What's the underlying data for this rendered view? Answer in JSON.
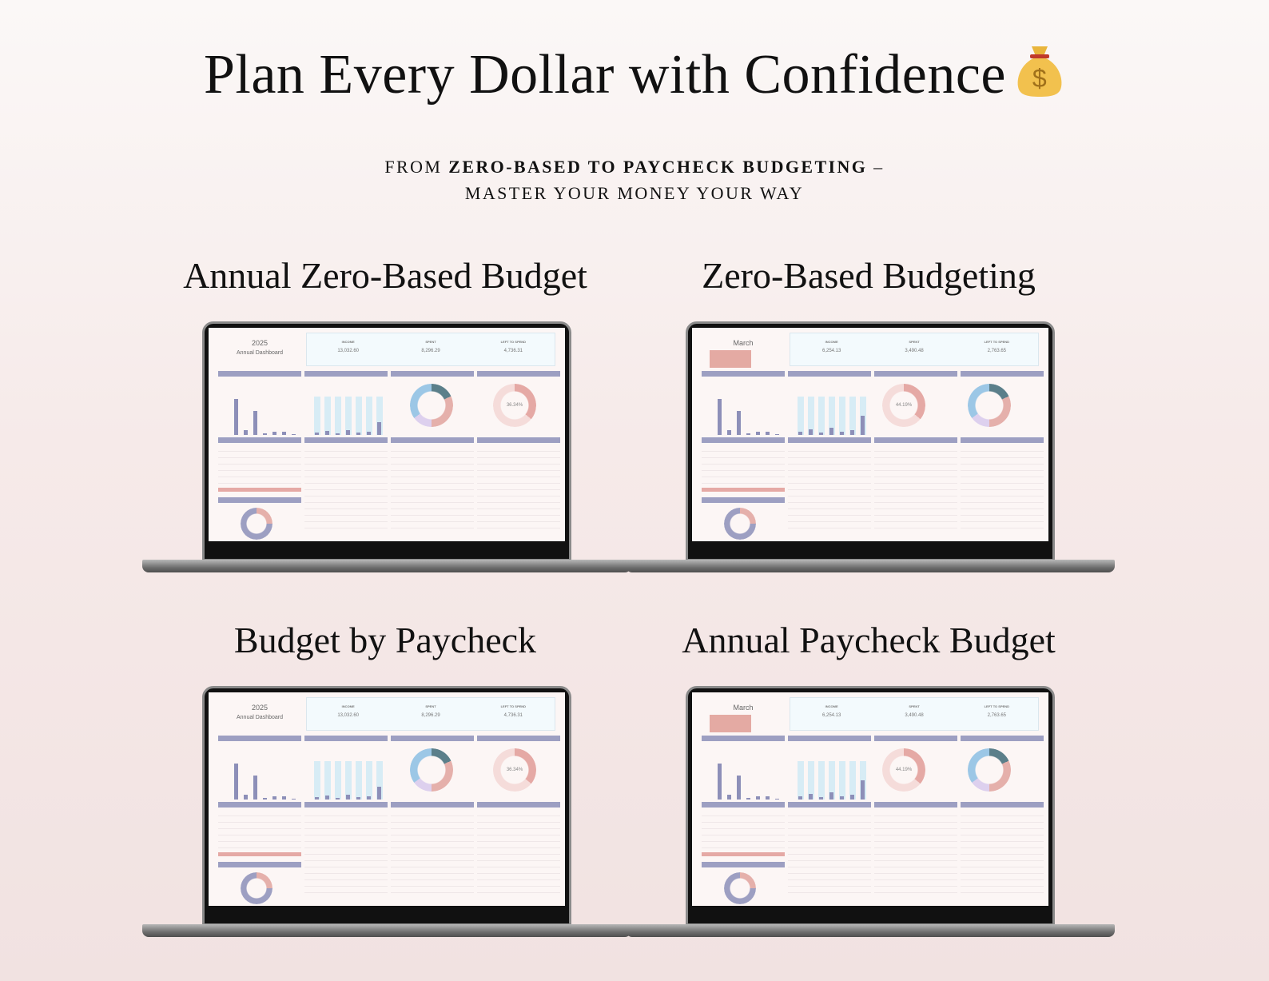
{
  "headline": {
    "title": "Plan Every Dollar with Confidence",
    "icon": "money-bag-icon"
  },
  "subtitle": {
    "prefix": "FROM ",
    "bold": "ZERO-BASED TO PAYCHECK BUDGETING",
    "suffix": " –",
    "line2": "MASTER YOUR MONEY YOUR WAY"
  },
  "colors": {
    "accent_purple": "#9d9fc2",
    "accent_pink": "#e5a9a5",
    "light_blue": "#d7ecf5"
  },
  "products": [
    {
      "title": "Annual Zero-Based Budget",
      "screen": {
        "heading": "2025",
        "subheading": "Annual Dashboard",
        "stats": [
          {
            "label": "INCOME",
            "value": "13,032.60"
          },
          {
            "label": "SPENT",
            "value": "8,296.29"
          },
          {
            "label": "LEFT TO SPEND",
            "value": "4,736.31"
          }
        ],
        "percent": "36.34%"
      }
    },
    {
      "title": "Zero-Based Budgeting",
      "screen": {
        "heading": "March",
        "subheading": "",
        "stats": [
          {
            "label": "INCOME",
            "value": "6,254.13"
          },
          {
            "label": "SPENT",
            "value": "3,490.48"
          },
          {
            "label": "LEFT TO SPEND",
            "value": "2,763.65"
          }
        ],
        "percent": "44.19%"
      }
    },
    {
      "title": "Budget by Paycheck",
      "screen": {
        "heading": "2025",
        "subheading": "Annual Dashboard",
        "stats": [
          {
            "label": "INCOME",
            "value": "13,032.60"
          },
          {
            "label": "SPENT",
            "value": "8,296.29"
          },
          {
            "label": "LEFT TO SPEND",
            "value": "4,736.31"
          }
        ],
        "percent": "36.34%"
      }
    },
    {
      "title": "Annual Paycheck Budget",
      "screen": {
        "heading": "March",
        "subheading": "",
        "stats": [
          {
            "label": "INCOME",
            "value": "6,254.13"
          },
          {
            "label": "SPENT",
            "value": "3,490.48"
          },
          {
            "label": "LEFT TO SPEND",
            "value": "2,763.65"
          }
        ],
        "percent": "44.19%"
      }
    }
  ]
}
